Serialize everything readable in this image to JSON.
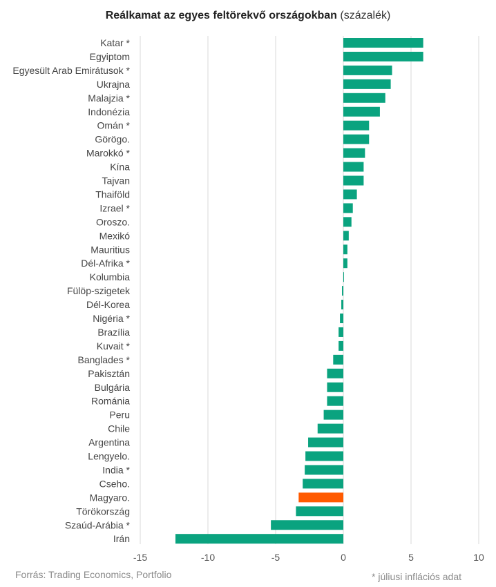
{
  "title": {
    "main": "Reálkamat az egyes feltörekvő országokban",
    "unit": "(százalék)"
  },
  "source": "Forrás: Trading Economics, Portfolio",
  "note": "* júliusi inflációs adat",
  "colors": {
    "bar": "#0aa37f",
    "highlight": "#ff5a00",
    "grid": "#d9d9d9",
    "text": "#444444"
  },
  "chart_data": {
    "type": "bar",
    "orientation": "horizontal",
    "title": "Reálkamat az egyes feltörekvő országokban (százalék)",
    "xlim": [
      -15,
      10
    ],
    "xticks": [
      -15,
      -10,
      -5,
      0,
      5,
      10
    ],
    "grid": true,
    "highlight": "Magyaro.",
    "categories": [
      "Katar *",
      "Egyiptom",
      "Egyesült Arab Emirátusok *",
      "Ukrajna",
      "Malajzia *",
      "Indonézia",
      "Omán *",
      "Görögo.",
      "Marokkó *",
      "Kína",
      "Tajvan",
      "Thaiföld",
      "Izrael *",
      "Oroszo.",
      "Mexikó",
      "Mauritius",
      "Dél-Afrika *",
      "Kolumbia",
      "Fülöp-szigetek",
      "Dél-Korea",
      "Nigéria *",
      "Brazília",
      "Kuvait *",
      "Banglades *",
      "Pakisztán",
      "Bulgária",
      "Románia",
      "Peru",
      "Chile",
      "Argentina",
      "Lengyelo.",
      "India *",
      "Cseho.",
      "Magyaro.",
      "Törökország",
      "Szaúd-Arábia *",
      "Irán"
    ],
    "values": [
      5.9,
      5.9,
      3.6,
      3.5,
      3.1,
      2.7,
      1.9,
      1.9,
      1.6,
      1.5,
      1.5,
      1.0,
      0.7,
      0.6,
      0.4,
      0.3,
      0.3,
      0.05,
      -0.1,
      -0.15,
      -0.25,
      -0.35,
      -0.35,
      -0.75,
      -1.2,
      -1.2,
      -1.2,
      -1.45,
      -1.9,
      -2.6,
      -2.8,
      -2.85,
      -3.0,
      -3.3,
      -3.5,
      -5.35,
      -12.4
    ]
  }
}
